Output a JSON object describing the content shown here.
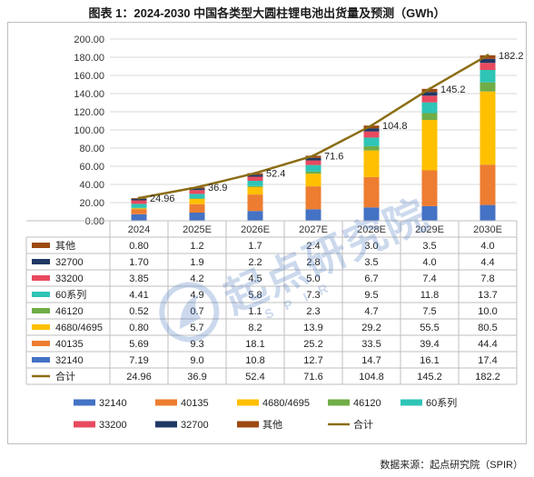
{
  "title": "图表 1：2024-2030 中国各类型大圆柱锂电池出货量及预测（GWh）",
  "source": "数据来源：起点研究院（SPIR）",
  "watermark": {
    "text": "起点研究院",
    "sub": "SPIR"
  },
  "chart_data": {
    "type": "bar",
    "stacked": true,
    "title": "",
    "xlabel": "",
    "ylabel": "",
    "ylim": [
      0,
      200
    ],
    "yticks": [
      "0.00",
      "20.00",
      "40.00",
      "60.00",
      "80.00",
      "100.00",
      "120.00",
      "140.00",
      "160.00",
      "180.00",
      "200.00"
    ],
    "grid": true,
    "categories": [
      "2024",
      "2025E",
      "2026E",
      "2027E",
      "2028E",
      "2029E",
      "2030E"
    ],
    "series": [
      {
        "name": "32140",
        "color": "#4472C4",
        "values": [
          7.19,
          9.0,
          10.8,
          12.7,
          14.7,
          16.1,
          17.4
        ],
        "labels": [
          "7.19",
          "9.0",
          "10.8",
          "12.7",
          "14.7",
          "16.1",
          "17.4"
        ]
      },
      {
        "name": "40135",
        "color": "#ED7D31",
        "values": [
          5.69,
          9.3,
          18.1,
          25.2,
          33.5,
          39.4,
          44.4
        ],
        "labels": [
          "5.69",
          "9.3",
          "18.1",
          "25.2",
          "33.5",
          "39.4",
          "44.4"
        ]
      },
      {
        "name": "4680/4695",
        "color": "#FFC000",
        "values": [
          0.8,
          5.7,
          8.2,
          13.9,
          29.2,
          55.5,
          80.5
        ],
        "labels": [
          "0.80",
          "5.7",
          "8.2",
          "13.9",
          "29.2",
          "55.5",
          "80.5"
        ]
      },
      {
        "name": "46120",
        "color": "#70AD47",
        "values": [
          0.52,
          0.7,
          1.1,
          2.3,
          4.7,
          7.5,
          10.0
        ],
        "labels": [
          "0.52",
          "0.7",
          "1.1",
          "2.3",
          "4.7",
          "7.5",
          "10.0"
        ]
      },
      {
        "name": "60系列",
        "color": "#2EC4B6",
        "values": [
          4.41,
          4.9,
          5.8,
          7.3,
          9.5,
          11.8,
          13.7
        ],
        "labels": [
          "4.41",
          "4.9",
          "5.8",
          "7.3",
          "9.5",
          "11.8",
          "13.7"
        ]
      },
      {
        "name": "33200",
        "color": "#E84A5F",
        "values": [
          3.85,
          4.2,
          4.5,
          5.0,
          6.7,
          7.4,
          7.8
        ],
        "labels": [
          "3.85",
          "4.2",
          "4.5",
          "5.0",
          "6.7",
          "7.4",
          "7.8"
        ]
      },
      {
        "name": "32700",
        "color": "#1F3864",
        "values": [
          1.7,
          1.9,
          2.2,
          2.8,
          3.5,
          4.0,
          4.4
        ],
        "labels": [
          "1.70",
          "1.9",
          "2.2",
          "2.8",
          "3.5",
          "4.0",
          "4.4"
        ]
      },
      {
        "name": "其他",
        "color": "#9C4A12",
        "values": [
          0.8,
          1.2,
          1.7,
          2.4,
          3.0,
          3.5,
          4.0
        ],
        "labels": [
          "0.80",
          "1.2",
          "1.7",
          "2.4",
          "3.0",
          "3.5",
          "4.0"
        ]
      }
    ],
    "total": {
      "name": "合计",
      "type": "line",
      "color": "#8B6D14",
      "values": [
        24.96,
        36.9,
        52.4,
        71.6,
        104.8,
        145.2,
        182.2
      ],
      "labels": [
        "24.96",
        "36.9",
        "52.4",
        "71.6",
        "104.8",
        "145.2",
        "182.2"
      ]
    },
    "table_order": [
      "其他",
      "32700",
      "33200",
      "60系列",
      "46120",
      "4680/4695",
      "40135",
      "32140",
      "合计"
    ],
    "legend_order": [
      "32140",
      "40135",
      "4680/4695",
      "46120",
      "60系列",
      "33200",
      "32700",
      "其他",
      "合计"
    ],
    "legend_position": "bottom"
  }
}
